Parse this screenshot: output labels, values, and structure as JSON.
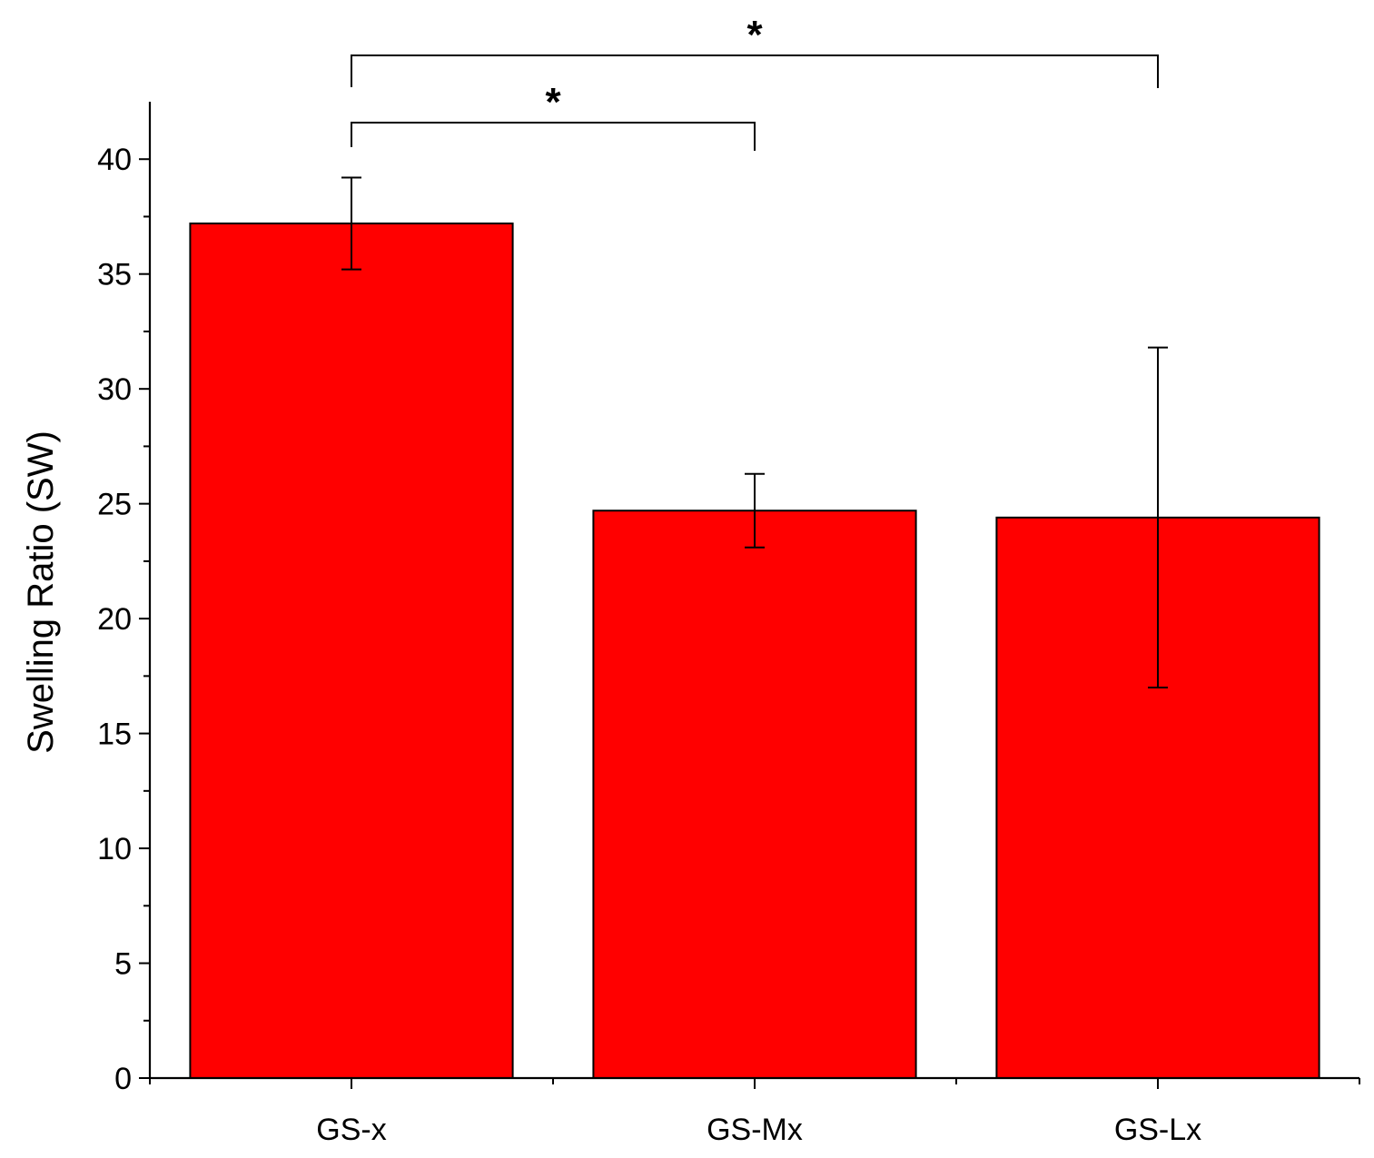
{
  "chart_data": {
    "type": "bar",
    "categories": [
      "GS-x",
      "GS-Mx",
      "GS-Lx"
    ],
    "values": [
      37.2,
      24.7,
      24.4
    ],
    "errors": [
      2.0,
      1.6,
      7.4
    ],
    "xlabel": "",
    "ylabel": "Swelling Ratio (SW)",
    "ylim": [
      0,
      42.5
    ],
    "yticks": [
      0,
      5,
      10,
      15,
      20,
      25,
      30,
      35,
      40
    ],
    "bar_color": "#ff0000",
    "grid": false,
    "significance": [
      {
        "from": "GS-x",
        "to": "GS-Mx",
        "label": "*"
      },
      {
        "from": "GS-x",
        "to": "GS-Lx",
        "label": "*"
      }
    ]
  }
}
